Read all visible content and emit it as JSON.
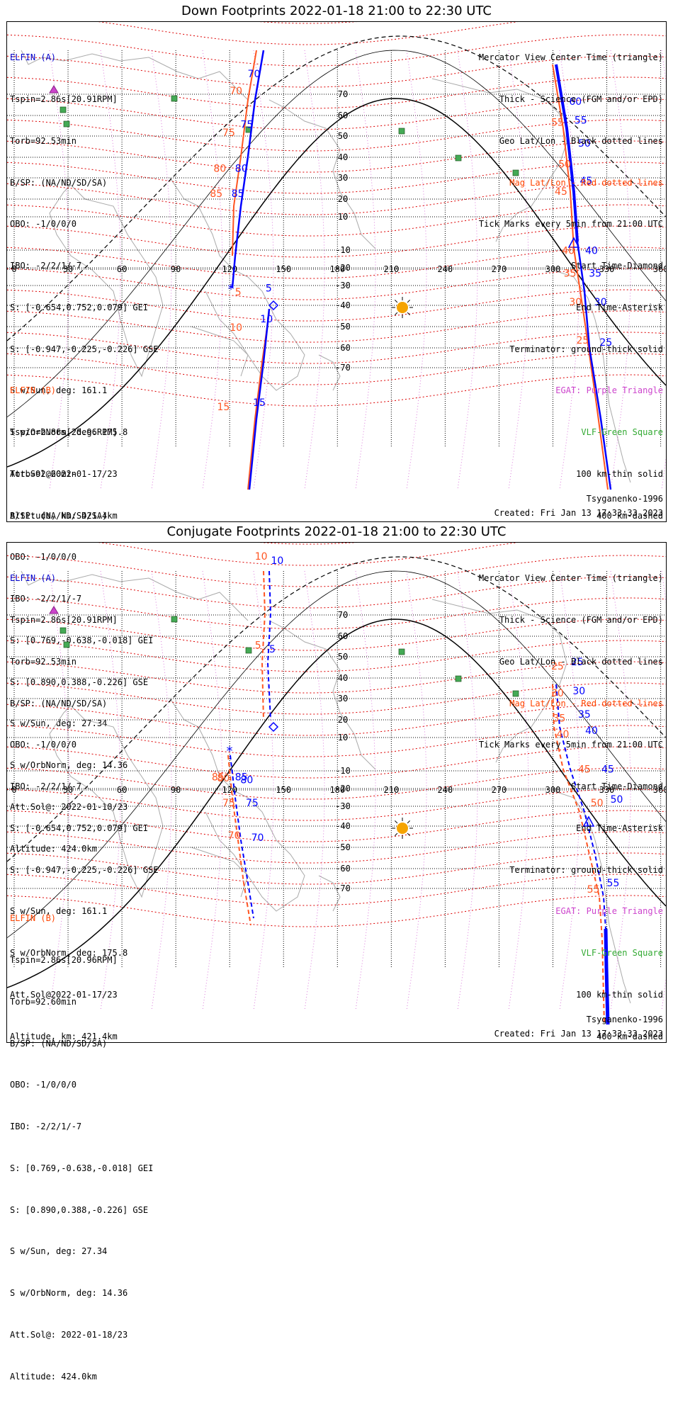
{
  "panels": [
    {
      "id": "down",
      "title": "Down Footprints 2022-01-18 21:00 to 22:30 UTC",
      "elfin_a": {
        "label": "ELFIN (A)",
        "lines": [
          "Tspin=2.86s[20.91RPM]",
          "Torb=92.53min",
          "B/SP: (NA/ND/SD/SA)",
          "OBO: -1/0/0/0",
          "IBO: -2/2/1/-7",
          "S: [-0.654,0.752,0.079] GEI",
          "S: [-0.947,-0.225,-0.226] GSE",
          "S w/Sun, deg: 161.1",
          "S w/OrbNorm, deg: 175.8",
          "Att.Sol@2022-01-17/23",
          "Altitude, km: 421.4km"
        ]
      },
      "elfin_b": {
        "label": "ELFIN (B)",
        "lines": [
          "Tspin=2.86s[20.96RPM]",
          "Torb=92.60min",
          "B/SP: (NA/ND/SD/SA)",
          "OBO: -1/0/0/0",
          "IBO: -2/2/1/-7",
          "S: [0.769,-0.638,-0.018] GEI",
          "S: [0.890,0.388,-0.226] GSE",
          "S w/Sun, deg: 27.34",
          "S w/OrbNorm, deg: 14.36",
          "Att.Sol@: 2022-01-18/23",
          "Altitude: 424.0km"
        ]
      },
      "a_ticks": [
        {
          "t": "60",
          "lon": 309,
          "lat": 65
        },
        {
          "t": "55",
          "lon": 312,
          "lat": 56
        },
        {
          "t": "50",
          "lon": 314,
          "lat": 45
        },
        {
          "t": "45",
          "lon": 315,
          "lat": 27
        },
        {
          "t": "40",
          "lon": 318,
          "lat": -8
        },
        {
          "t": "35",
          "lon": 320,
          "lat": -25
        },
        {
          "t": "30",
          "lon": 323,
          "lat": -40
        },
        {
          "t": "25",
          "lon": 326,
          "lat": -59
        },
        {
          "t": "5",
          "lon": 140,
          "lat": -33
        },
        {
          "t": "10",
          "lon": 137,
          "lat": -48
        },
        {
          "t": "15",
          "lon": 133,
          "lat": -79
        },
        {
          "t": "70",
          "lon": 130,
          "lat": 74
        },
        {
          "t": "75",
          "lon": 126,
          "lat": 54
        },
        {
          "t": "80",
          "lon": 123,
          "lat": 33
        },
        {
          "t": "85",
          "lon": 121,
          "lat": 21
        }
      ],
      "b_ticks": [
        {
          "t": "55",
          "lon": 299,
          "lat": 55
        },
        {
          "t": "50",
          "lon": 303,
          "lat": 35
        },
        {
          "t": "45",
          "lon": 301,
          "lat": 22
        },
        {
          "t": "40",
          "lon": 305,
          "lat": -8
        },
        {
          "t": "35",
          "lon": 306,
          "lat": -25
        },
        {
          "t": "30",
          "lon": 309,
          "lat": -40
        },
        {
          "t": "25",
          "lon": 313,
          "lat": -58
        },
        {
          "t": "70",
          "lon": 120,
          "lat": 70
        },
        {
          "t": "75",
          "lon": 116,
          "lat": 50
        },
        {
          "t": "80",
          "lon": 111,
          "lat": 33
        },
        {
          "t": "85",
          "lon": 109,
          "lat": 21
        },
        {
          "t": "5",
          "lon": 123,
          "lat": -35
        },
        {
          "t": "10",
          "lon": 120,
          "lat": -52
        },
        {
          "t": "15",
          "lon": 113,
          "lat": -80
        }
      ]
    },
    {
      "id": "conj",
      "title": "Conjugate Footprints 2022-01-18 21:00 to 22:30 UTC",
      "elfin_a": {
        "label": "ELFIN (A)",
        "lines": [
          "Tspin=2.86s[20.91RPM]",
          "Torb=92.53min",
          "B/SP: (NA/ND/SD/SA)",
          "OBO: -1/0/0/0",
          "IBO: -2/2/1/-7",
          "S: [-0.654,0.752,0.079] GEI",
          "S: [-0.947,-0.225,-0.226] GSE",
          "S w/Sun, deg: 161.1",
          "S w/OrbNorm, deg: 175.8",
          "Att.Sol@2022-01-17/23",
          "Altitude, km: 421.4km"
        ]
      },
      "elfin_b": {
        "label": "ELFIN (B)",
        "lines": [
          "Tspin=2.86s[20.96RPM]",
          "Torb=92.60min",
          "B/SP: (NA/ND/SD/SA)",
          "OBO: -1/0/0/0",
          "IBO: -2/2/1/-7",
          "S: [0.769,-0.638,-0.018] GEI",
          "S: [0.890,0.388,-0.226] GSE",
          "S w/Sun, deg: 27.34",
          "S w/OrbNorm, deg: 14.36",
          "Att.Sol@: 2022-01-18/23",
          "Altitude: 424.0km"
        ]
      },
      "a_ticks": [
        {
          "t": "10",
          "lon": 143,
          "lat": 82
        },
        {
          "t": "5",
          "lon": 142,
          "lat": 52
        },
        {
          "t": "25",
          "lon": 310,
          "lat": 46
        },
        {
          "t": "30",
          "lon": 311,
          "lat": 32
        },
        {
          "t": "35",
          "lon": 314,
          "lat": 21
        },
        {
          "t": "40",
          "lon": 318,
          "lat": 12
        },
        {
          "t": "45",
          "lon": 327,
          "lat": -11
        },
        {
          "t": "50",
          "lon": 332,
          "lat": -28
        },
        {
          "t": "55",
          "lon": 330,
          "lat": -69
        },
        {
          "t": "85",
          "lon": 123,
          "lat": -5
        },
        {
          "t": "80",
          "lon": 126,
          "lat": -17
        },
        {
          "t": "75",
          "lon": 129,
          "lat": -30
        },
        {
          "t": "70",
          "lon": 132,
          "lat": -47
        }
      ],
      "b_ticks": [
        {
          "t": "10",
          "lon": 134,
          "lat": 83
        },
        {
          "t": "5",
          "lon": 134,
          "lat": 54
        },
        {
          "t": "25",
          "lon": 299,
          "lat": 44
        },
        {
          "t": "30",
          "lon": 299,
          "lat": 31
        },
        {
          "t": "35",
          "lon": 300,
          "lat": 19
        },
        {
          "t": "40",
          "lon": 302,
          "lat": 10
        },
        {
          "t": "45",
          "lon": 314,
          "lat": -11
        },
        {
          "t": "50",
          "lon": 321,
          "lat": -30
        },
        {
          "t": "55",
          "lon": 319,
          "lat": -71
        },
        {
          "t": "85",
          "lon": 110,
          "lat": -5
        },
        {
          "t": "80",
          "lon": 113,
          "lat": -16
        },
        {
          "t": "75",
          "lon": 116,
          "lat": -30
        },
        {
          "t": "70",
          "lon": 119,
          "lat": -46
        }
      ]
    }
  ],
  "legend": {
    "line1": "Mercator View Center Time (triangle)",
    "line2": "Thick - Science (FGM and/or EPD)",
    "line3": "Geo Lat/Lon - Black dotted lines",
    "line4": "Mag Lat/Lon - Red dotted lines",
    "line5": "Tick Marks every 5min from 21:00 UTC",
    "line6": "Start Time-Diamond",
    "line7": "End Time-Asterisk",
    "line8": "Terminator: ground-thick solid",
    "line9": "EGAT: Purple Triangle",
    "line10": "VLF-Green Square",
    "line11": "100 km-thin solid",
    "line12": "400 km-dashed"
  },
  "footer": {
    "model": "Tsyganenko-1996",
    "created": "Created: Fri Jan 13 17:33:33 2023"
  },
  "axes": {
    "lon_ticks": [
      0,
      30,
      60,
      90,
      120,
      150,
      180,
      210,
      240,
      270,
      300,
      330,
      360
    ],
    "lon_labels": [
      "0",
      "30",
      "60",
      "90",
      "120",
      "150",
      "180",
      "210",
      "240",
      "270",
      "300",
      "330",
      "360"
    ],
    "lat_ticks": [
      70,
      60,
      50,
      40,
      30,
      20,
      10,
      -10,
      -20,
      -30,
      -40,
      -50,
      -60,
      -70
    ],
    "lat_labels": [
      "70",
      "60",
      "50",
      "40",
      "30",
      "20",
      "10",
      "-10",
      "-20",
      "-30",
      "-40",
      "-50",
      "-60",
      "-70"
    ]
  },
  "colors": {
    "elfin_a": "#0000ff",
    "elfin_b": "#ff5522",
    "geo_grid": "#000000",
    "mag_grid": "#dd0000",
    "egat": "#cc44cc",
    "vlf": "#44aa55",
    "sun": "#f5a300",
    "coast": "#aaaaaa"
  }
}
